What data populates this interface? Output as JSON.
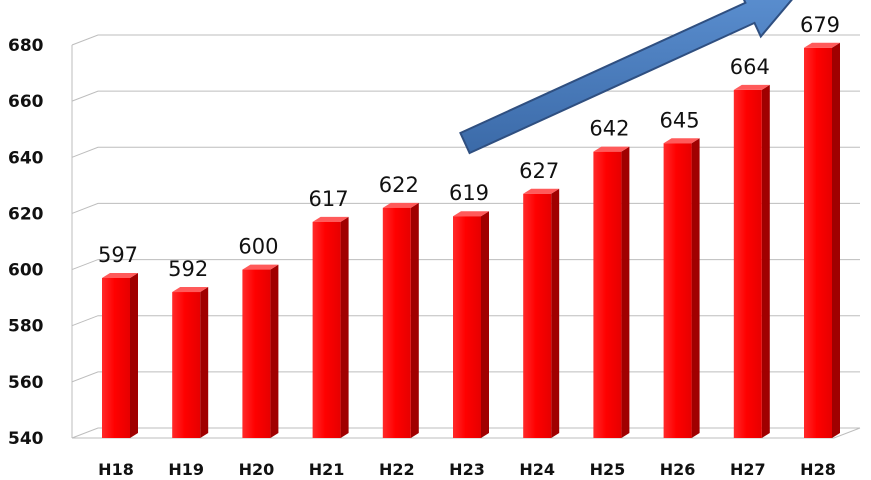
{
  "chart_data": {
    "type": "bar",
    "title": "",
    "xlabel": "",
    "ylabel": "",
    "categories": [
      "H18",
      "H19",
      "H20",
      "H21",
      "H22",
      "H23",
      "H24",
      "H25",
      "H26",
      "H27",
      "H28"
    ],
    "values": [
      597,
      592,
      600,
      617,
      622,
      619,
      627,
      642,
      645,
      664,
      679
    ],
    "ylim": [
      540,
      680
    ],
    "yticks": [
      540,
      560,
      580,
      600,
      620,
      640,
      660,
      680
    ],
    "grid": true,
    "legend": "none",
    "bar_color": "#ff0000",
    "annotation": "upward trend arrow (blue)",
    "arrow_color": "#4a7ab8"
  }
}
